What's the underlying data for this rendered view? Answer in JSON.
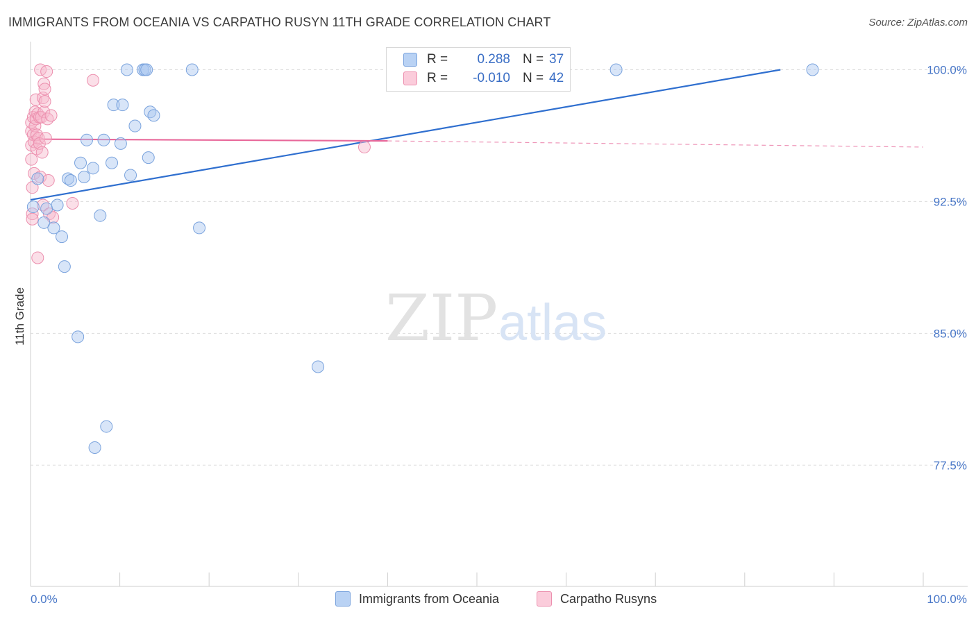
{
  "title": "IMMIGRANTS FROM OCEANIA VS CARPATHO RUSYN 11TH GRADE CORRELATION CHART",
  "source": "Source: ZipAtlas.com",
  "watermark": {
    "zip": "ZIP",
    "atlas": "atlas"
  },
  "colors": {
    "blue": "#a9c6f0",
    "blue_stroke": "#7aa3dd",
    "blue_line": "#2f6fcf",
    "pink": "#f6b8cb",
    "pink_stroke": "#ec8fae",
    "pink_line": "#e8689a",
    "axis_text": "#4a78c8"
  },
  "legend": {
    "rows": [
      {
        "r_label": "R =",
        "r_value": "0.288",
        "n_label": "N =",
        "n_value": "37"
      },
      {
        "r_label": "R =",
        "r_value": "-0.010",
        "n_label": "N =",
        "n_value": "42"
      }
    ]
  },
  "bottom_legend": {
    "series1": "Immigrants from Oceania",
    "series2": "Carpatho Rusyns"
  },
  "chart_data": {
    "type": "scatter",
    "title": "IMMIGRANTS FROM OCEANIA VS CARPATHO RUSYN 11TH GRADE CORRELATION CHART",
    "xlabel": "",
    "ylabel": "11th Grade",
    "xlim": [
      0,
      100
    ],
    "ylim": [
      70.6,
      101.6
    ],
    "x_tick_labels": [
      "0.0%",
      "100.0%"
    ],
    "y_ticks": [
      77.5,
      85.0,
      92.5,
      100.0
    ],
    "y_tick_labels": [
      "77.5%",
      "85.0%",
      "92.5%",
      "100.0%"
    ],
    "grid": true,
    "series": [
      {
        "name": "Immigrants from Oceania",
        "R": 0.288,
        "N": 37,
        "points": [
          [
            0.3,
            92.2
          ],
          [
            0.8,
            93.8
          ],
          [
            1.5,
            91.3
          ],
          [
            1.8,
            92.1
          ],
          [
            2.6,
            91.0
          ],
          [
            3.0,
            92.3
          ],
          [
            3.5,
            90.5
          ],
          [
            3.8,
            88.8
          ],
          [
            4.2,
            93.8
          ],
          [
            4.5,
            93.7
          ],
          [
            5.3,
            84.8
          ],
          [
            5.6,
            94.7
          ],
          [
            6.0,
            93.9
          ],
          [
            6.3,
            96.0
          ],
          [
            7.0,
            94.4
          ],
          [
            7.2,
            78.5
          ],
          [
            7.8,
            91.7
          ],
          [
            8.2,
            96.0
          ],
          [
            8.5,
            79.7
          ],
          [
            9.1,
            94.7
          ],
          [
            9.3,
            98.0
          ],
          [
            10.1,
            95.8
          ],
          [
            10.3,
            98.0
          ],
          [
            10.8,
            100.0
          ],
          [
            11.2,
            94.0
          ],
          [
            11.7,
            96.8
          ],
          [
            12.6,
            100.0
          ],
          [
            12.8,
            100.0
          ],
          [
            13.0,
            100.0
          ],
          [
            13.2,
            95.0
          ],
          [
            13.4,
            97.6
          ],
          [
            13.8,
            97.4
          ],
          [
            18.1,
            100.0
          ],
          [
            18.9,
            91.0
          ],
          [
            32.2,
            83.1
          ],
          [
            65.6,
            100.0
          ],
          [
            87.6,
            100.0
          ]
        ],
        "trend": {
          "x0": 0,
          "y0": 92.6,
          "x1": 84,
          "y1": 100.0,
          "dashed_to": null
        }
      },
      {
        "name": "Carpatho Rusyns",
        "R": -0.01,
        "N": 42,
        "points": [
          [
            0.1,
            96.5
          ],
          [
            0.1,
            97.0
          ],
          [
            0.1,
            95.7
          ],
          [
            0.1,
            94.9
          ],
          [
            0.2,
            93.3
          ],
          [
            0.2,
            91.8
          ],
          [
            0.3,
            97.3
          ],
          [
            0.3,
            96.3
          ],
          [
            0.4,
            95.9
          ],
          [
            0.4,
            94.1
          ],
          [
            0.5,
            96.8
          ],
          [
            0.5,
            97.6
          ],
          [
            0.6,
            98.3
          ],
          [
            0.6,
            97.2
          ],
          [
            0.7,
            95.5
          ],
          [
            0.7,
            96.3
          ],
          [
            0.8,
            89.3
          ],
          [
            0.8,
            97.5
          ],
          [
            0.9,
            96.1
          ],
          [
            1.0,
            97.3
          ],
          [
            1.0,
            95.8
          ],
          [
            1.1,
            100.0
          ],
          [
            1.1,
            93.9
          ],
          [
            1.2,
            97.3
          ],
          [
            1.3,
            95.3
          ],
          [
            1.4,
            98.4
          ],
          [
            1.4,
            92.3
          ],
          [
            1.5,
            97.6
          ],
          [
            1.5,
            99.2
          ],
          [
            1.6,
            98.2
          ],
          [
            1.6,
            98.9
          ],
          [
            1.7,
            96.1
          ],
          [
            1.8,
            99.9
          ],
          [
            1.9,
            97.2
          ],
          [
            2.0,
            93.7
          ],
          [
            2.1,
            91.8
          ],
          [
            2.3,
            97.4
          ],
          [
            2.5,
            91.6
          ],
          [
            4.7,
            92.4
          ],
          [
            7.0,
            99.4
          ],
          [
            37.4,
            95.6
          ],
          [
            0.2,
            91.5
          ]
        ],
        "trend": {
          "x0": 0,
          "y0": 96.05,
          "x1": 40,
          "y1": 95.95,
          "dashed_to": {
            "x": 100,
            "y": 95.6
          }
        }
      }
    ]
  }
}
